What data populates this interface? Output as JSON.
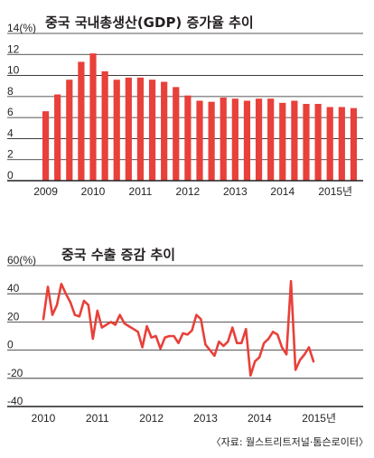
{
  "colors": {
    "accent": "#e8403a",
    "axis": "#231f20",
    "grid": "#231f20"
  },
  "source": "〈자료: 월스트리트저널·톰슨로이터〉",
  "chart_data": [
    {
      "type": "bar",
      "title": "중국 국내총생산(GDP) 증가율 추이",
      "unit_label": "14(%)",
      "y_ticks": [
        "14(%)",
        "12",
        "10",
        "8",
        "6",
        "4",
        "2",
        "0"
      ],
      "ylim": [
        0,
        14
      ],
      "x_tick_labels": [
        "2009",
        "2010",
        "2011",
        "2012",
        "2013",
        "2014",
        "2015년"
      ],
      "categories": [
        "2009Q1",
        "2009Q2",
        "2009Q3",
        "2009Q4",
        "2010Q1",
        "2010Q2",
        "2010Q3",
        "2010Q4",
        "2011Q1",
        "2011Q2",
        "2011Q3",
        "2011Q4",
        "2012Q1",
        "2012Q2",
        "2012Q3",
        "2012Q4",
        "2013Q1",
        "2013Q2",
        "2013Q3",
        "2013Q4",
        "2014Q1",
        "2014Q2",
        "2014Q3",
        "2014Q4",
        "2015Q1",
        "2015Q2",
        "2015Q3"
      ],
      "values": [
        6.6,
        8.2,
        9.6,
        11.3,
        12.1,
        10.4,
        9.6,
        9.8,
        9.8,
        9.6,
        9.4,
        8.9,
        8.1,
        7.6,
        7.5,
        7.9,
        7.8,
        7.6,
        7.8,
        7.8,
        7.4,
        7.6,
        7.3,
        7.3,
        7.0,
        7.0,
        6.9
      ],
      "grid": true
    },
    {
      "type": "line",
      "title": "중국 수출 증감 추이",
      "unit_label": "60(%)",
      "y_ticks": [
        "60(%)",
        "40",
        "20",
        "0",
        "-20",
        "-40"
      ],
      "ylim": [
        -40,
        60
      ],
      "x_tick_labels": [
        "2010",
        "2011",
        "2012",
        "2013",
        "2014",
        "2015년"
      ],
      "x_start": 2010.0,
      "x_step": 0.0833,
      "values": [
        22,
        45,
        25,
        32,
        47,
        40,
        34,
        25,
        24,
        35,
        32,
        8,
        28,
        16,
        18,
        20,
        18,
        25,
        19,
        17,
        15,
        13,
        2,
        17,
        9,
        10,
        1,
        9,
        10,
        10,
        5,
        12,
        11,
        14,
        25,
        22,
        4,
        0,
        -4,
        6,
        3,
        6,
        16,
        5,
        5,
        15,
        -18,
        -8,
        -5,
        5,
        8,
        13,
        11,
        2,
        -3,
        49,
        -14,
        -7,
        -3,
        2,
        -8
      ]
    }
  ]
}
